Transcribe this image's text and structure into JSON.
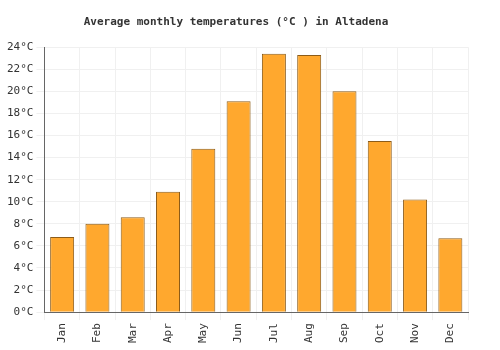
{
  "chart_data": {
    "type": "bar",
    "title": "Average monthly temperatures (°C ) in Altadena",
    "categories": [
      "Jan",
      "Feb",
      "Mar",
      "Apr",
      "May",
      "Jun",
      "Jul",
      "Aug",
      "Sep",
      "Oct",
      "Nov",
      "Dec"
    ],
    "values": [
      6.8,
      8.0,
      8.6,
      10.9,
      14.8,
      19.1,
      23.4,
      23.3,
      20.0,
      15.5,
      10.2,
      6.7
    ],
    "color": "#ffa82e",
    "ylim": [
      0,
      24
    ],
    "yticks": [
      {
        "value": 0,
        "label": "0°C"
      },
      {
        "value": 2,
        "label": "2°C"
      },
      {
        "value": 4,
        "label": "4°C"
      },
      {
        "value": 6,
        "label": "6°C"
      },
      {
        "value": 8,
        "label": "8°C"
      },
      {
        "value": 10,
        "label": "10°C"
      },
      {
        "value": 12,
        "label": "12°C"
      },
      {
        "value": 14,
        "label": "14°C"
      },
      {
        "value": 16,
        "label": "16°C"
      },
      {
        "value": 18,
        "label": "18°C"
      },
      {
        "value": 20,
        "label": "20°C"
      },
      {
        "value": 22,
        "label": "22°C"
      },
      {
        "value": 24,
        "label": "24°C"
      }
    ],
    "grid": true
  }
}
